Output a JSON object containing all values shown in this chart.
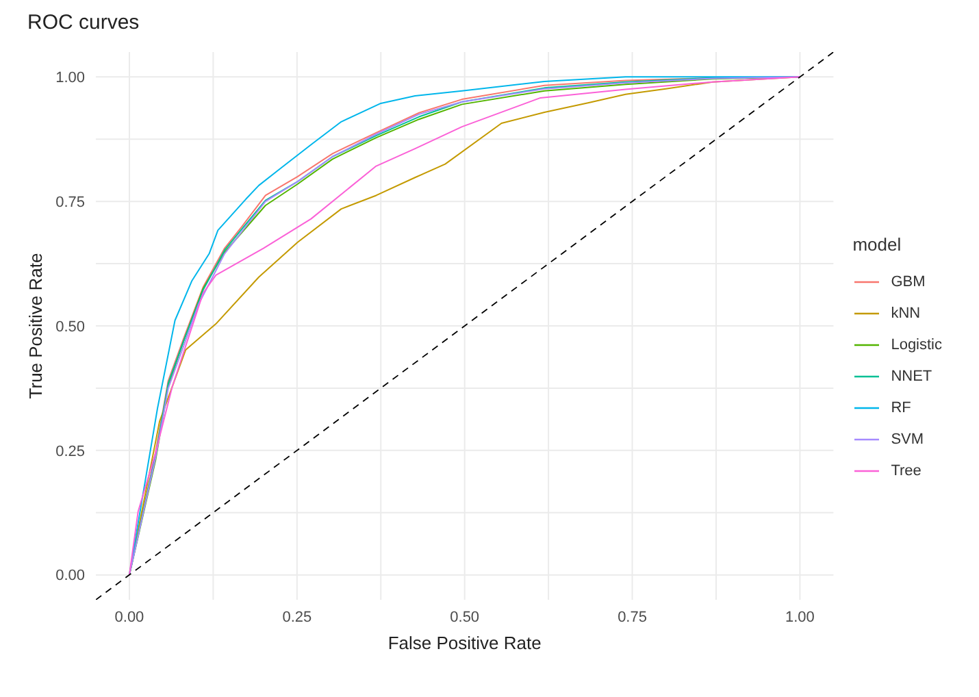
{
  "chart_data": {
    "type": "line",
    "title": "ROC curves",
    "xlabel": "False Positive Rate",
    "ylabel": "True Positive Rate",
    "legend_title": "model",
    "legend": "right",
    "grid": true,
    "marker": "none",
    "line_style": "solid",
    "xlim": [
      -0.05,
      1.05
    ],
    "ylim": [
      -0.05,
      1.05
    ],
    "xticks": [
      {
        "value": 0,
        "label": "0.00"
      },
      {
        "value": 0.25,
        "label": "0.25"
      },
      {
        "value": 0.5,
        "label": "0.50"
      },
      {
        "value": 0.75,
        "label": "0.75"
      },
      {
        "value": 1,
        "label": "1.00"
      }
    ],
    "yticks": [
      {
        "value": 0,
        "label": "0.00"
      },
      {
        "value": 0.25,
        "label": "0.25"
      },
      {
        "value": 0.5,
        "label": "0.50"
      },
      {
        "value": 0.75,
        "label": "0.75"
      },
      {
        "value": 1,
        "label": "1.00"
      }
    ],
    "series": [
      {
        "name": "GBM",
        "color": "#f8766d",
        "x": [
          0,
          0.039,
          0.058,
          0.081,
          0.11,
          0.142,
          0.168,
          0.203,
          0.251,
          0.303,
          0.368,
          0.432,
          0.496,
          0.619,
          0.74,
          0.87,
          1
        ],
        "values": [
          0,
          0.245,
          0.39,
          0.475,
          0.578,
          0.656,
          0.7,
          0.762,
          0.8,
          0.846,
          0.888,
          0.928,
          0.955,
          0.983,
          0.993,
          0.998,
          1
        ]
      },
      {
        "name": "kNN",
        "color": "#c49a00",
        "x": [
          0,
          0.045,
          0.084,
          0.129,
          0.193,
          0.251,
          0.316,
          0.368,
          0.426,
          0.471,
          0.555,
          0.619,
          0.684,
          0.74,
          0.8,
          0.87,
          1
        ],
        "values": [
          0,
          0.308,
          0.452,
          0.504,
          0.598,
          0.668,
          0.735,
          0.762,
          0.798,
          0.825,
          0.907,
          0.929,
          0.948,
          0.965,
          0.976,
          0.99,
          1
        ]
      },
      {
        "name": "Logistic",
        "color": "#53b400",
        "x": [
          0,
          0.039,
          0.058,
          0.081,
          0.11,
          0.142,
          0.168,
          0.203,
          0.251,
          0.303,
          0.368,
          0.432,
          0.496,
          0.619,
          0.74,
          0.87,
          1
        ],
        "values": [
          0,
          0.23,
          0.38,
          0.47,
          0.575,
          0.648,
          0.688,
          0.742,
          0.785,
          0.835,
          0.878,
          0.915,
          0.945,
          0.972,
          0.985,
          0.996,
          1
        ]
      },
      {
        "name": "NNET",
        "color": "#00c094",
        "x": [
          0,
          0.039,
          0.058,
          0.081,
          0.11,
          0.142,
          0.168,
          0.203,
          0.251,
          0.303,
          0.368,
          0.432,
          0.496,
          0.619,
          0.74,
          0.87,
          1
        ],
        "values": [
          0,
          0.24,
          0.385,
          0.47,
          0.572,
          0.652,
          0.695,
          0.752,
          0.79,
          0.84,
          0.882,
          0.92,
          0.95,
          0.978,
          0.99,
          0.998,
          1
        ]
      },
      {
        "name": "RF",
        "color": "#00b6eb",
        "x": [
          0,
          0.042,
          0.068,
          0.093,
          0.119,
          0.132,
          0.174,
          0.193,
          0.226,
          0.271,
          0.316,
          0.375,
          0.426,
          0.496,
          0.619,
          0.74,
          1
        ],
        "values": [
          0,
          0.335,
          0.511,
          0.59,
          0.645,
          0.692,
          0.755,
          0.782,
          0.817,
          0.864,
          0.91,
          0.947,
          0.962,
          0.972,
          0.991,
          1,
          1
        ]
      },
      {
        "name": "SVM",
        "color": "#a58aff",
        "x": [
          0,
          0.039,
          0.058,
          0.081,
          0.103,
          0.142,
          0.168,
          0.203,
          0.251,
          0.303,
          0.368,
          0.432,
          0.496,
          0.619,
          0.74,
          0.87,
          1
        ],
        "values": [
          0,
          0.235,
          0.375,
          0.46,
          0.543,
          0.645,
          0.69,
          0.75,
          0.79,
          0.84,
          0.885,
          0.925,
          0.95,
          0.976,
          0.988,
          0.997,
          1
        ]
      },
      {
        "name": "Tree",
        "color": "#fb61d7",
        "x": [
          0,
          0.013,
          0.039,
          0.064,
          0.087,
          0.11,
          0.129,
          0.2,
          0.271,
          0.368,
          0.426,
          0.496,
          0.613,
          0.74,
          0.87,
          1
        ],
        "values": [
          0,
          0.127,
          0.245,
          0.378,
          0.472,
          0.566,
          0.602,
          0.656,
          0.715,
          0.821,
          0.856,
          0.9,
          0.958,
          0.975,
          0.99,
          1
        ]
      },
      {
        "type": "line",
        "color": "#000000",
        "line_style": "dashed",
        "x": [
          -0.05,
          1.05
        ],
        "values": [
          -0.05,
          1.05
        ]
      }
    ]
  }
}
